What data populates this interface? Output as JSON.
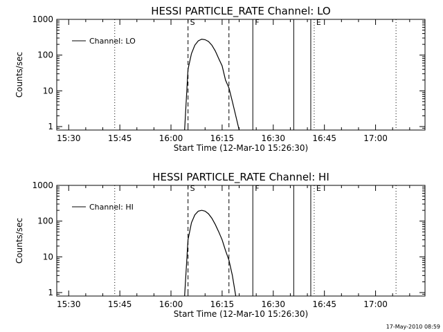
{
  "chart_data": [
    {
      "type": "line",
      "title": "HESSI PARTICLE_RATE Channel: LO",
      "xlabel": "Start Time (12-Mar-10 15:26:30)",
      "ylabel": "Counts/sec",
      "x_unit": "minutes after 15:26:30",
      "xlim": [
        "15:26:30",
        "17:14:30"
      ],
      "ylim": [
        0.8,
        1000
      ],
      "yscale": "log",
      "xticks": [
        "15:30",
        "15:45",
        "16:00",
        "16:15",
        "16:30",
        "16:45",
        "17:00"
      ],
      "yticks": [
        "1",
        "10",
        "100",
        "1000"
      ],
      "legend": {
        "placement": "top-left",
        "entries": [
          "Channel: LO"
        ]
      },
      "series": [
        {
          "name": "Channel: LO",
          "x": [
            "16:04:00",
            "16:05:00",
            "16:06:00",
            "16:07:00",
            "16:08:00",
            "16:09:00",
            "16:10:00",
            "16:11:00",
            "16:12:00",
            "16:13:00",
            "16:14:00",
            "16:15:00",
            "16:16:00",
            "16:17:00",
            "16:18:00",
            "16:19:00",
            "16:20:00"
          ],
          "values": [
            0.7,
            40,
            110,
            190,
            250,
            280,
            270,
            240,
            190,
            130,
            80,
            50,
            20,
            12,
            5,
            2,
            0.7
          ]
        }
      ],
      "markers": [
        {
          "time": "16:05:00",
          "style": "dashed",
          "label": "S"
        },
        {
          "time": "16:17:00",
          "style": "dashed",
          "label": ""
        },
        {
          "time": "15:43:30",
          "style": "dotted",
          "label": ""
        },
        {
          "time": "16:24:00",
          "style": "solid",
          "label": "F"
        },
        {
          "time": "16:36:00",
          "style": "solid",
          "label": ""
        },
        {
          "time": "16:41:00",
          "style": "solid",
          "label": ""
        },
        {
          "time": "16:42:00",
          "style": "dotted",
          "label": "E"
        },
        {
          "time": "17:06:00",
          "style": "dotted",
          "label": ""
        }
      ]
    },
    {
      "type": "line",
      "title": "HESSI PARTICLE_RATE Channel: HI",
      "xlabel": "Start Time (12-Mar-10 15:26:30)",
      "ylabel": "Counts/sec",
      "x_unit": "minutes after 15:26:30",
      "xlim": [
        "15:26:30",
        "17:14:30"
      ],
      "ylim": [
        0.8,
        1000
      ],
      "yscale": "log",
      "xticks": [
        "15:30",
        "15:45",
        "16:00",
        "16:15",
        "16:30",
        "16:45",
        "17:00"
      ],
      "yticks": [
        "1",
        "10",
        "100",
        "1000"
      ],
      "legend": {
        "placement": "top-left",
        "entries": [
          "Channel: HI"
        ]
      },
      "series": [
        {
          "name": "Channel: HI",
          "x": [
            "16:04:00",
            "16:05:00",
            "16:06:00",
            "16:07:00",
            "16:08:00",
            "16:09:00",
            "16:10:00",
            "16:11:00",
            "16:12:00",
            "16:13:00",
            "16:14:00",
            "16:15:00",
            "16:16:00",
            "16:17:00",
            "16:18:00",
            "16:19:00"
          ],
          "values": [
            0.7,
            30,
            90,
            150,
            190,
            200,
            190,
            160,
            120,
            80,
            50,
            30,
            15,
            8,
            3,
            0.7
          ]
        }
      ],
      "markers": [
        {
          "time": "16:05:00",
          "style": "dashed",
          "label": "S"
        },
        {
          "time": "16:17:00",
          "style": "dashed",
          "label": ""
        },
        {
          "time": "15:43:30",
          "style": "dotted",
          "label": ""
        },
        {
          "time": "16:24:00",
          "style": "solid",
          "label": "F"
        },
        {
          "time": "16:36:00",
          "style": "solid",
          "label": ""
        },
        {
          "time": "16:41:00",
          "style": "solid",
          "label": ""
        },
        {
          "time": "16:42:00",
          "style": "dotted",
          "label": "E"
        },
        {
          "time": "17:06:00",
          "style": "dotted",
          "label": ""
        }
      ]
    }
  ],
  "datestamp": "17-May-2010 08:59"
}
